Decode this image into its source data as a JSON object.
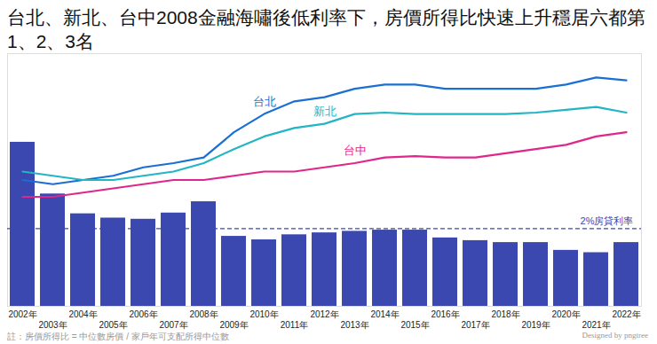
{
  "chart_data": {
    "type": "bar",
    "title": "台北、新北、台中2008金融海嘯後低利率下，房價所得比快速上升穩居六都第1、2、3名",
    "caption": "註：房價所得比 = 中位數房價 / 家戶年可支配所得中位數",
    "credit": "Designed by pngtree",
    "categories": [
      "2002年",
      "2003年",
      "2004年",
      "2005年",
      "2006年",
      "2007年",
      "2008年",
      "2009年",
      "2010年",
      "2011年",
      "2012年",
      "2013年",
      "2014年",
      "2015年",
      "2016年",
      "2017年",
      "2018年",
      "2019年",
      "2020年",
      "2021年",
      "2022年"
    ],
    "series": [
      {
        "type": "bar",
        "color": "#3a48b0",
        "values": [
          4.22,
          2.89,
          2.38,
          2.27,
          2.24,
          2.4,
          2.69,
          1.8,
          1.71,
          1.84,
          1.89,
          1.93,
          1.96,
          1.96,
          1.76,
          1.69,
          1.64,
          1.64,
          1.44,
          1.38,
          1.64
        ]
      },
      {
        "name": "台北",
        "type": "line",
        "axis": "y2",
        "color": "#1a6fd4",
        "values": [
          9.0,
          8.7,
          9.0,
          9.3,
          9.9,
          10.2,
          10.6,
          12.4,
          13.7,
          14.6,
          14.9,
          15.5,
          15.8,
          15.8,
          15.5,
          15.5,
          15.5,
          15.5,
          15.8,
          16.3,
          16.1
        ]
      },
      {
        "name": "新北",
        "type": "line",
        "axis": "y2",
        "color": "#22b5c4",
        "values": [
          9.6,
          9.3,
          9.0,
          9.0,
          9.3,
          9.6,
          10.2,
          11.2,
          12.1,
          12.7,
          13.0,
          13.7,
          13.8,
          13.7,
          13.7,
          13.7,
          13.7,
          13.8,
          14.0,
          14.2,
          13.8
        ]
      },
      {
        "name": "台中",
        "type": "line",
        "axis": "y2",
        "color": "#e0268c",
        "values": [
          7.8,
          7.8,
          8.1,
          8.4,
          8.7,
          9.0,
          9.0,
          9.3,
          9.6,
          9.6,
          9.9,
          10.2,
          10.6,
          10.7,
          10.6,
          10.6,
          10.9,
          11.2,
          11.5,
          12.1,
          12.4
        ]
      }
    ],
    "annotations": [
      {
        "text": "2%房貸利率",
        "y": 2,
        "color": "#3a48b0",
        "line_style": "dashed"
      }
    ],
    "ylim": [
      0,
      6.5
    ],
    "y2lim": [
      0,
      18
    ],
    "tick_labels": "x"
  }
}
